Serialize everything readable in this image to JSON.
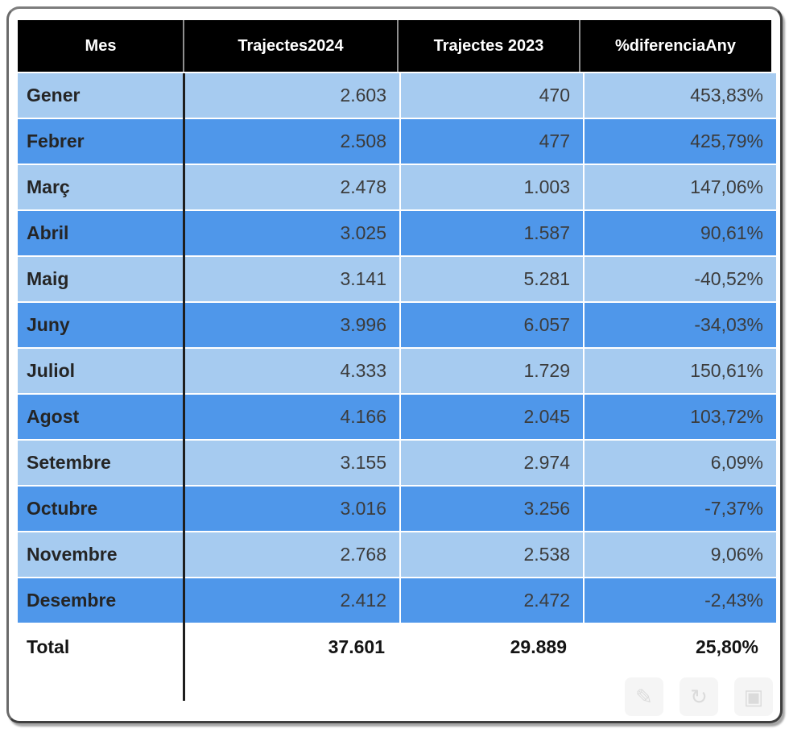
{
  "table": {
    "columns": [
      {
        "key": "mes",
        "label": "Mes"
      },
      {
        "key": "t2024",
        "label": "Trajectes2024"
      },
      {
        "key": "t2023",
        "label": "Trajectes 2023"
      },
      {
        "key": "diff",
        "label": "%diferenciaAny"
      }
    ],
    "rows": [
      {
        "mes": "Gener",
        "t2024": "2.603",
        "t2023": "470",
        "diff": "453,83%"
      },
      {
        "mes": "Febrer",
        "t2024": "2.508",
        "t2023": "477",
        "diff": "425,79%"
      },
      {
        "mes": "Març",
        "t2024": "2.478",
        "t2023": "1.003",
        "diff": "147,06%"
      },
      {
        "mes": "Abril",
        "t2024": "3.025",
        "t2023": "1.587",
        "diff": "90,61%"
      },
      {
        "mes": "Maig",
        "t2024": "3.141",
        "t2023": "5.281",
        "diff": "-40,52%"
      },
      {
        "mes": "Juny",
        "t2024": "3.996",
        "t2023": "6.057",
        "diff": "-34,03%"
      },
      {
        "mes": "Juliol",
        "t2024": "4.333",
        "t2023": "1.729",
        "diff": "150,61%"
      },
      {
        "mes": "Agost",
        "t2024": "4.166",
        "t2023": "2.045",
        "diff": "103,72%"
      },
      {
        "mes": "Setembre",
        "t2024": "3.155",
        "t2023": "2.974",
        "diff": "6,09%"
      },
      {
        "mes": "Octubre",
        "t2024": "3.016",
        "t2023": "3.256",
        "diff": "-7,37%"
      },
      {
        "mes": "Novembre",
        "t2024": "2.768",
        "t2023": "2.538",
        "diff": "9,06%"
      },
      {
        "mes": "Desembre",
        "t2024": "2.412",
        "t2023": "2.472",
        "diff": "-2,43%"
      }
    ],
    "total": {
      "mes": "Total",
      "t2024": "37.601",
      "t2023": "29.889",
      "diff": "25,80%"
    }
  },
  "overlay_icons": [
    {
      "name": "watermark-pencil-icon",
      "glyph": "✎"
    },
    {
      "name": "watermark-refresh-icon",
      "glyph": "↻"
    },
    {
      "name": "watermark-image-icon",
      "glyph": "▣"
    }
  ],
  "colors": {
    "header_bg": "#000000",
    "header_text": "#ffffff",
    "header_divider": "#8f8f8f",
    "row_light": "#a6cbf0",
    "row_dark": "#4f97ea",
    "month_text": "#252525",
    "value_text": "#3c3c3c",
    "total_bg": "#ffffff",
    "total_text": "#141414",
    "grid_line": "#ffffff",
    "first_col_divider": "#1e1e1e",
    "frame_bg": "#ffffff"
  },
  "chart_data": {
    "type": "table",
    "columns": [
      "Mes",
      "Trajectes2024",
      "Trajectes 2023",
      "%diferenciaAny"
    ],
    "rows": [
      {
        "mes": "Gener",
        "trajectes_2024": 2603,
        "trajectes_2023": 470,
        "pct_diferencia_any": 453.83
      },
      {
        "mes": "Febrer",
        "trajectes_2024": 2508,
        "trajectes_2023": 477,
        "pct_diferencia_any": 425.79
      },
      {
        "mes": "Març",
        "trajectes_2024": 2478,
        "trajectes_2023": 1003,
        "pct_diferencia_any": 147.06
      },
      {
        "mes": "Abril",
        "trajectes_2024": 3025,
        "trajectes_2023": 1587,
        "pct_diferencia_any": 90.61
      },
      {
        "mes": "Maig",
        "trajectes_2024": 3141,
        "trajectes_2023": 5281,
        "pct_diferencia_any": -40.52
      },
      {
        "mes": "Juny",
        "trajectes_2024": 3996,
        "trajectes_2023": 6057,
        "pct_diferencia_any": -34.03
      },
      {
        "mes": "Juliol",
        "trajectes_2024": 4333,
        "trajectes_2023": 1729,
        "pct_diferencia_any": 150.61
      },
      {
        "mes": "Agost",
        "trajectes_2024": 4166,
        "trajectes_2023": 2045,
        "pct_diferencia_any": 103.72
      },
      {
        "mes": "Setembre",
        "trajectes_2024": 3155,
        "trajectes_2023": 2974,
        "pct_diferencia_any": 6.09
      },
      {
        "mes": "Octubre",
        "trajectes_2024": 3016,
        "trajectes_2023": 3256,
        "pct_diferencia_any": -7.37
      },
      {
        "mes": "Novembre",
        "trajectes_2024": 2768,
        "trajectes_2023": 2538,
        "pct_diferencia_any": 9.06
      },
      {
        "mes": "Desembre",
        "trajectes_2024": 2412,
        "trajectes_2023": 2472,
        "pct_diferencia_any": -2.43
      }
    ],
    "total": {
      "mes": "Total",
      "trajectes_2024": 37601,
      "trajectes_2023": 29889,
      "pct_diferencia_any": 25.8
    },
    "number_locale": "ca-ES",
    "layout": "black header, alternating light/dark blue striped rows, bold white total row"
  }
}
